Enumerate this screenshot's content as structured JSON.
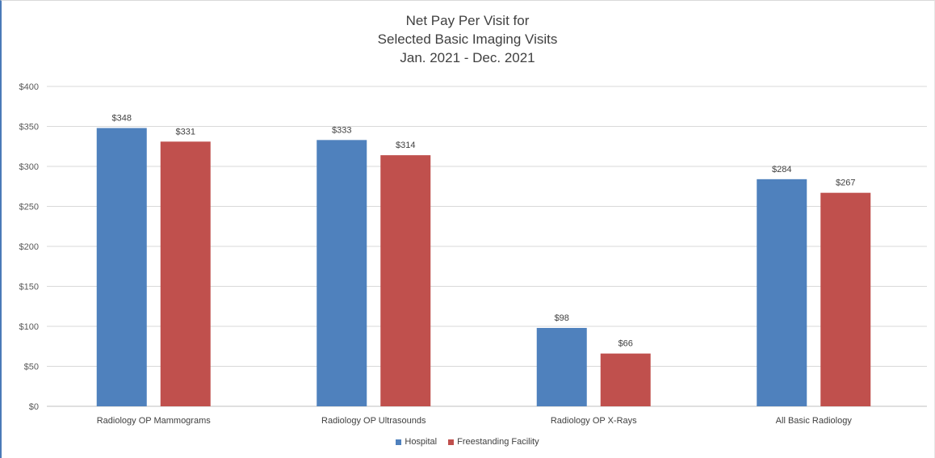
{
  "chart_data": {
    "type": "bar",
    "title_lines": [
      "Net Pay Per Visit for",
      "Selected Basic Imaging Visits",
      "Jan. 2021 - Dec. 2021"
    ],
    "categories": [
      "Radiology OP Mammograms",
      "Radiology OP Ultrasounds",
      "Radiology OP X-Rays",
      "All Basic Radiology"
    ],
    "series": [
      {
        "name": "Hospital",
        "color": "#4f81bd",
        "values": [
          348,
          333,
          98,
          284
        ],
        "labels": [
          "$348",
          "$333",
          "$98",
          "$284"
        ]
      },
      {
        "name": "Freestanding Facility",
        "color": "#c0504d",
        "values": [
          331,
          314,
          66,
          267
        ],
        "labels": [
          "$331",
          "$314",
          "$66",
          "$267"
        ]
      }
    ],
    "ylim": [
      0,
      400
    ],
    "yticks": [
      0,
      50,
      100,
      150,
      200,
      250,
      300,
      350,
      400
    ],
    "ytick_labels": [
      "$0",
      "$50",
      "$100",
      "$150",
      "$200",
      "$250",
      "$300",
      "$350",
      "$400"
    ],
    "grid": true,
    "legend_position": "bottom"
  }
}
